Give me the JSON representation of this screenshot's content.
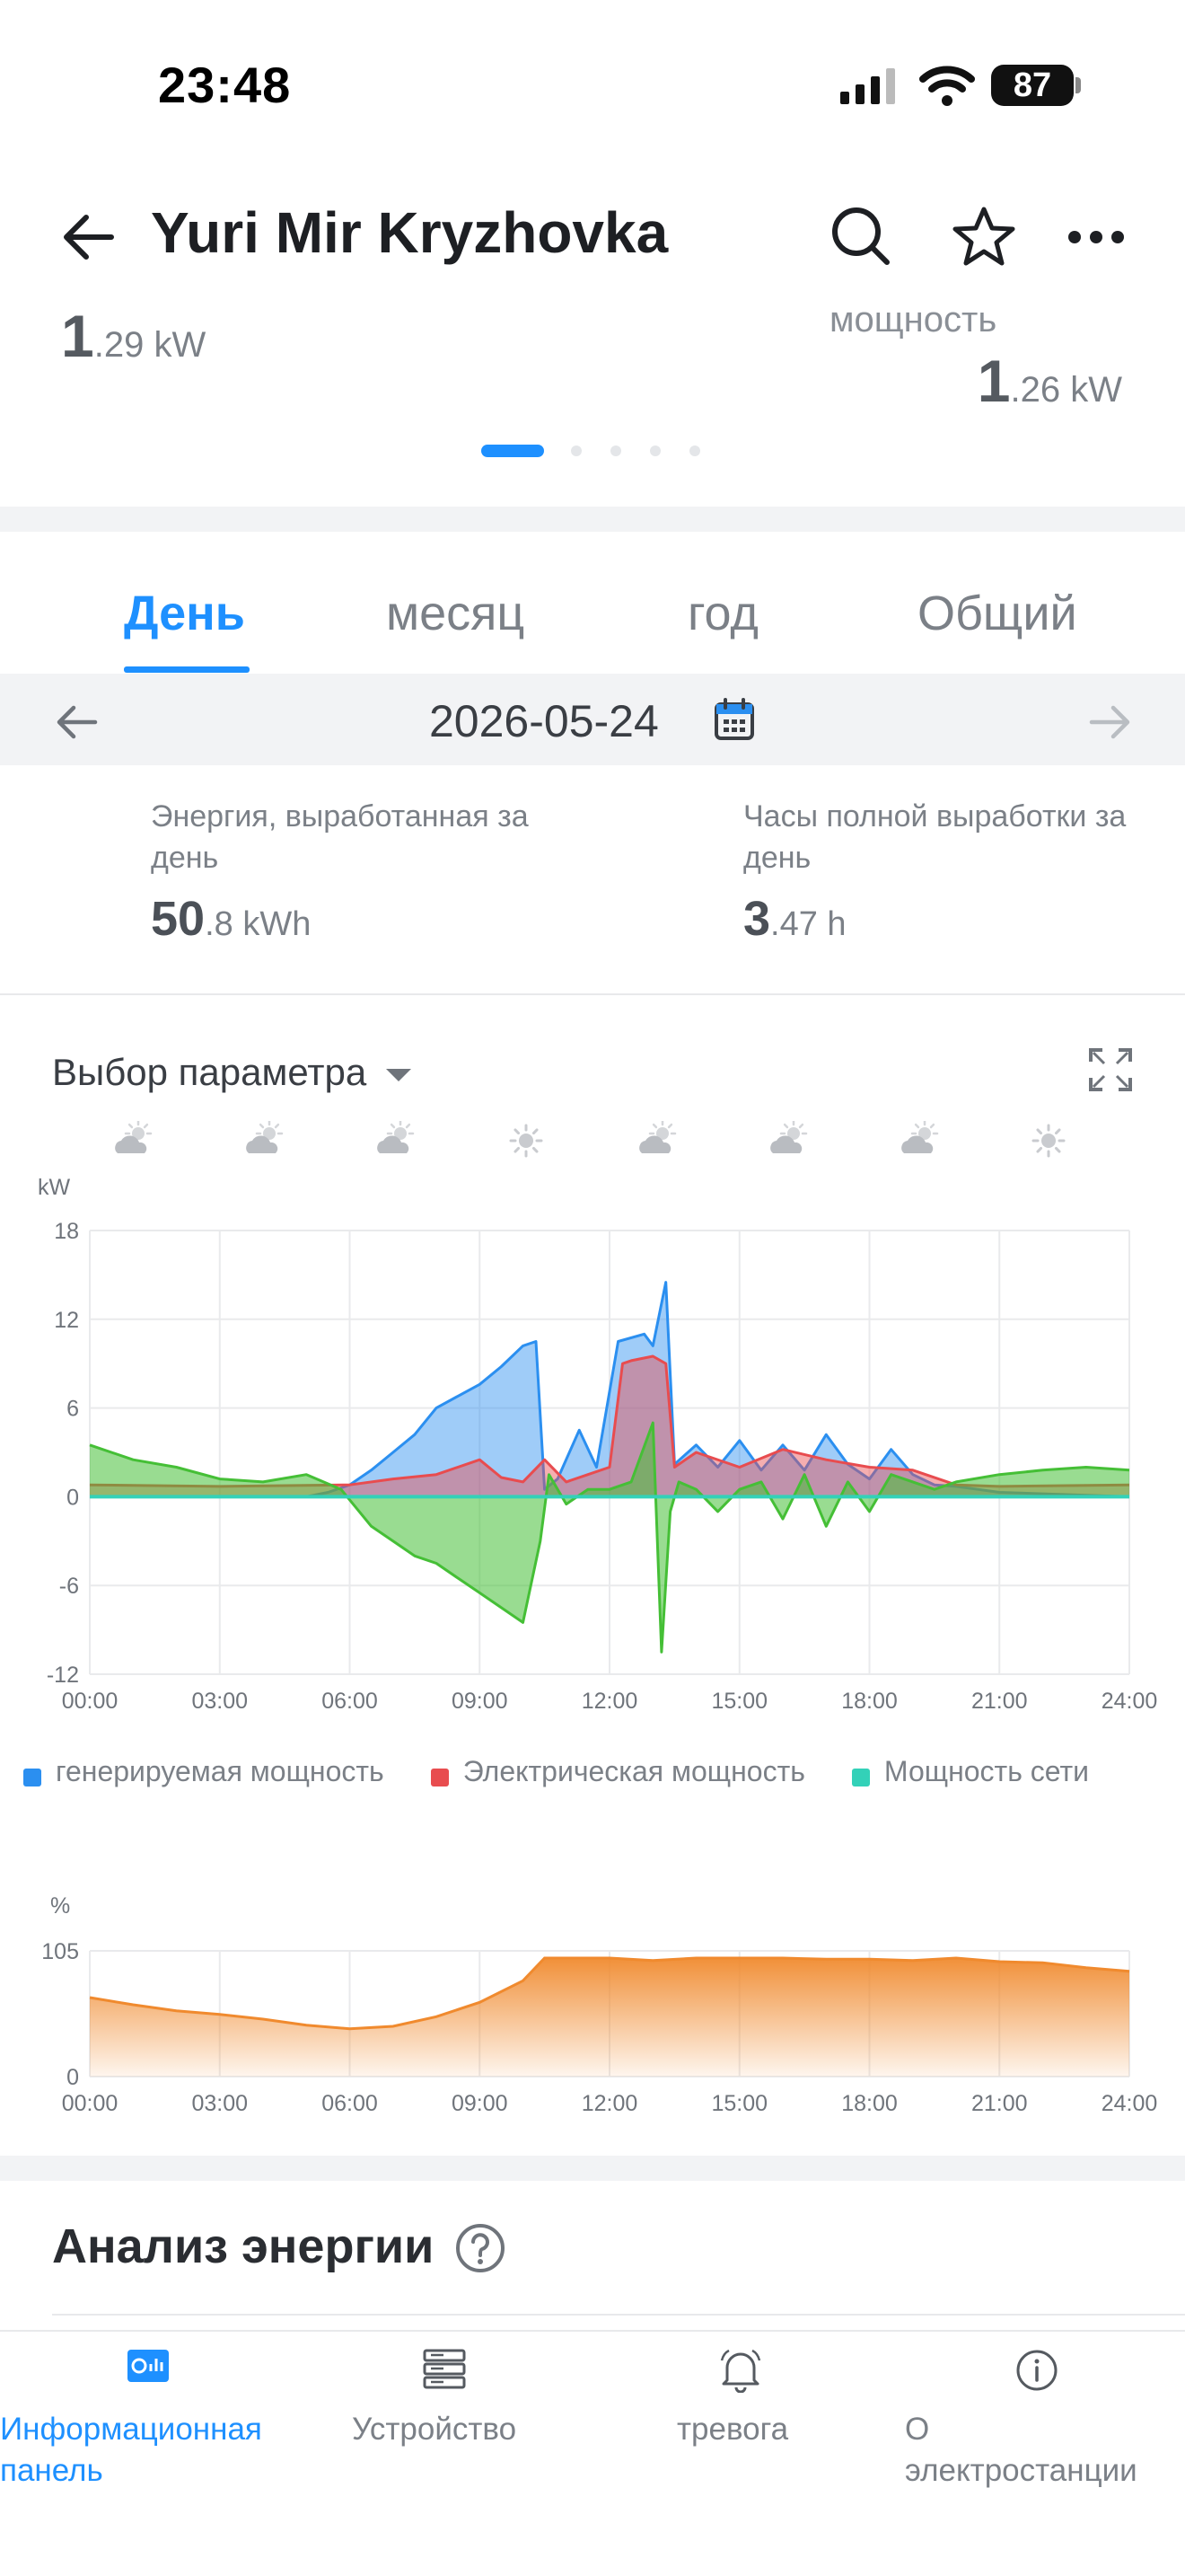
{
  "status_bar": {
    "time": "23:48",
    "battery": "87"
  },
  "header": {
    "title": "Yuri Mir Kryzhovka",
    "left_metric": {
      "big": "1",
      "small": ".29 kW"
    },
    "right_metric": {
      "label": "мощность",
      "big": "1",
      "small": ".26 kW"
    }
  },
  "tabs": [
    "День",
    "месяц",
    "год",
    "Общий"
  ],
  "date": "2026-05-24",
  "stats": [
    {
      "label_line1": "Энергия, выработанная за",
      "label_line2": "день",
      "big": "50",
      "small": ".8 kWh"
    },
    {
      "label_line1": "Часы полной выработки за",
      "label_line2": "день",
      "big": "3",
      "small": ".47 h"
    }
  ],
  "param_select": "Выбор параметра",
  "weather": [
    "partly-cloudy-icon",
    "partly-cloudy-icon",
    "partly-cloudy-icon",
    "sun-icon",
    "partly-cloudy-icon",
    "partly-cloudy-icon",
    "partly-cloudy-icon",
    "sun-icon"
  ],
  "colors": {
    "accent": "#1e90ff",
    "generation": "#2b8ff0",
    "consumption": "#e84c4f",
    "grid": "#45bf36",
    "grid_legend": "#33d1b8",
    "soc": "#f08a2e"
  },
  "chart_data": [
    {
      "type": "area",
      "ylabel": "kW",
      "ylim": [
        -12,
        18
      ],
      "yticks": [
        "18",
        "12",
        "6",
        "0",
        "-6",
        "-12"
      ],
      "xticks": [
        "00:00",
        "03:00",
        "06:00",
        "09:00",
        "12:00",
        "15:00",
        "18:00",
        "21:00",
        "24:00"
      ],
      "series": [
        {
          "name": "генерируемая мощность",
          "color": "#2b8ff0",
          "x": [
            0,
            5,
            5.5,
            6,
            6.5,
            7,
            7.5,
            8,
            8.5,
            9,
            9.5,
            10,
            10.3,
            10.5,
            10.8,
            11.3,
            11.7,
            12.2,
            12.8,
            13,
            13.3,
            13.5,
            14,
            14.5,
            15,
            15.5,
            16,
            16.5,
            17,
            17.5,
            18,
            18.5,
            19,
            19.5,
            20,
            20.5,
            21,
            24
          ],
          "values": [
            0,
            0,
            0.3,
            0.8,
            1.8,
            3,
            4.2,
            6,
            6.8,
            7.6,
            8.8,
            10.2,
            10.5,
            0.5,
            1.2,
            4.5,
            2,
            10.5,
            11,
            10.2,
            14.5,
            2.2,
            3.5,
            2,
            3.8,
            1.8,
            3.5,
            1.8,
            4.2,
            2.2,
            1.2,
            3.2,
            1.5,
            0.8,
            0.7,
            0.5,
            0.3,
            0
          ]
        },
        {
          "name": "Электрическая мощность",
          "color": "#e84c4f",
          "x": [
            0,
            3,
            6,
            7,
            8,
            9,
            9.5,
            10,
            10.5,
            11,
            11.5,
            12,
            12.3,
            12.5,
            13,
            13.3,
            13.5,
            14,
            15,
            16,
            17,
            18,
            19,
            20,
            21,
            24
          ],
          "values": [
            0.8,
            0.7,
            0.8,
            1.2,
            1.5,
            2.5,
            1.3,
            1,
            2.5,
            1,
            1.5,
            2,
            9,
            9.2,
            9.5,
            9,
            2,
            3,
            2,
            3.2,
            2.5,
            2,
            1.8,
            0.8,
            0.7,
            0.8
          ]
        },
        {
          "name": "Мощность сети",
          "color": "#33d1b8",
          "x": [
            0,
            1,
            2,
            3,
            4,
            5,
            5.8,
            6.5,
            7,
            7.5,
            8,
            8.5,
            9,
            9.5,
            10,
            10.4,
            10.6,
            11,
            11.5,
            12,
            12.5,
            13,
            13.2,
            13.4,
            13.6,
            14,
            14.5,
            15,
            15.5,
            16,
            16.5,
            17,
            17.5,
            18,
            18.5,
            19,
            19.5,
            20,
            21,
            22,
            23,
            24
          ],
          "values": [
            3.5,
            2.5,
            2,
            1.2,
            1,
            1.5,
            0.5,
            -2,
            -3,
            -4,
            -4.5,
            -5.5,
            -6.5,
            -7.5,
            -8.5,
            -3,
            1.5,
            -0.5,
            0.5,
            0.5,
            1,
            5,
            -10.5,
            -1,
            1,
            0.5,
            -1,
            0.5,
            1,
            -1.5,
            1.5,
            -2,
            1,
            -1,
            1.5,
            1,
            0.5,
            1,
            1.5,
            1.8,
            2,
            1.8
          ]
        }
      ]
    },
    {
      "type": "area",
      "ylabel": "%",
      "ylim": [
        0,
        105
      ],
      "yticks": [
        "105",
        "0"
      ],
      "xticks": [
        "00:00",
        "03:00",
        "06:00",
        "09:00",
        "12:00",
        "15:00",
        "18:00",
        "21:00",
        "24:00"
      ],
      "series": [
        {
          "color": "#f08a2e",
          "x": [
            0,
            1,
            2,
            3,
            4,
            5,
            6,
            7,
            8,
            9,
            10,
            10.5,
            12,
            13,
            14,
            15,
            16,
            17,
            18,
            19,
            20,
            21,
            22,
            23,
            24
          ],
          "values": [
            66,
            60,
            55,
            52,
            48,
            43,
            40,
            42,
            50,
            62,
            80,
            99,
            99,
            97,
            99,
            99,
            99,
            98,
            98,
            97,
            99,
            96,
            95,
            91,
            88
          ]
        }
      ]
    }
  ],
  "section_title": "Анализ энергии",
  "bottom_nav": [
    {
      "label_line1": "Информационная",
      "label_line2": "панель",
      "active": true
    },
    {
      "label_line1": "Устройство",
      "label_line2": "",
      "active": false
    },
    {
      "label_line1": "тревога",
      "label_line2": "",
      "active": false
    },
    {
      "label_line1": "О",
      "label_line2": "электростанции",
      "active": false
    }
  ]
}
